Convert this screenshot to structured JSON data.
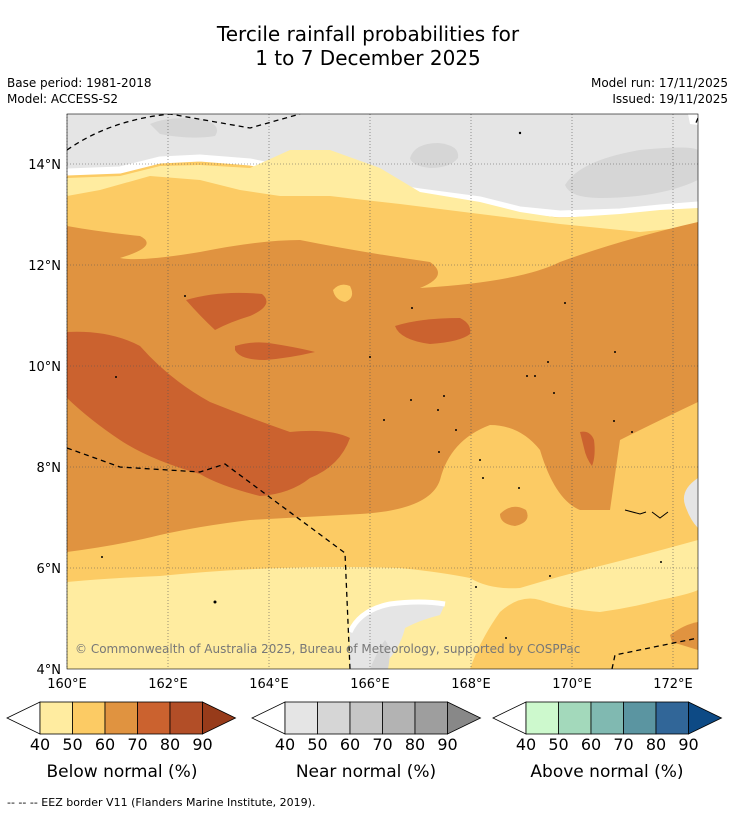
{
  "header": {
    "title_line1": "Tercile rainfall probabilities for",
    "title_line2": "1 to 7 December 2025",
    "base_period": "Base period: 1981-2018",
    "model": "Model: ACCESS-S2",
    "model_run": "Model run: 17/11/2025",
    "issued": "Issued: 19/11/2025"
  },
  "map": {
    "lat_labels": [
      "14°N",
      "12°N",
      "10°N",
      "8°N",
      "6°N",
      "4°N"
    ],
    "lon_labels": [
      "160°E",
      "162°E",
      "164°E",
      "166°E",
      "168°E",
      "170°E",
      "172°E"
    ],
    "copyright": "© Commonwealth of Australia 2025, Bureau of Meteorology, supported by COSPPac"
  },
  "legends": [
    {
      "name": "Below normal (%)",
      "ticks": [
        "40",
        "50",
        "60",
        "70",
        "80",
        "90"
      ],
      "colors": [
        "#ffeca0",
        "#fccb64",
        "#e09340",
        "#cb622f",
        "#b24e27",
        "#973b1a"
      ]
    },
    {
      "name": "Near normal (%)",
      "ticks": [
        "40",
        "50",
        "60",
        "70",
        "80",
        "90"
      ],
      "colors": [
        "#e5e5e5",
        "#d6d6d6",
        "#c6c6c6",
        "#b3b3b3",
        "#9e9e9e",
        "#888888"
      ]
    },
    {
      "name": "Above normal (%)",
      "ticks": [
        "40",
        "50",
        "60",
        "70",
        "80",
        "90"
      ],
      "colors": [
        "#cdf9cd",
        "#a3d9bb",
        "#80b9b1",
        "#5b95a1",
        "#316698",
        "#0d4a85"
      ]
    }
  ],
  "footer": {
    "text": "--  --  -- EEZ border V11 (Flanders Marine Institute, 2019)."
  }
}
